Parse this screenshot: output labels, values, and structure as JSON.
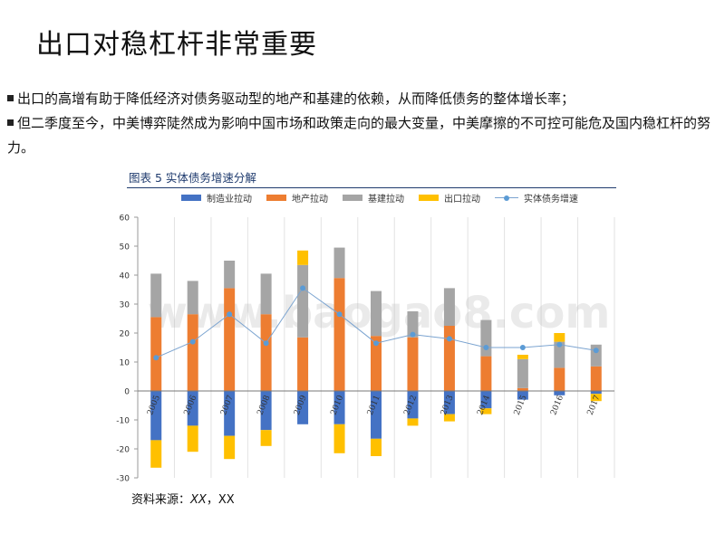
{
  "slide": {
    "title": "出口对稳杠杆非常重要",
    "bullets": [
      "出口的高增有助于降低经济对债务驱动型的地产和基建的依赖，从而降低债务的整体增长率；",
      "但二季度至今，中美博弈陡然成为影响中国市场和政策走向的最大变量，中美摩擦的不可控可能危及国内稳杠杆的努力。"
    ],
    "chart_caption": "图表 5  实体债务增速分解",
    "source_label": "资料来源：",
    "source_value_1": "XX",
    "source_sep": "，",
    "source_value_2": "XX"
  },
  "colors": {
    "manufacturing": "#4472c4",
    "realestate": "#ed7d31",
    "infrastructure": "#a5a5a5",
    "exports": "#ffc000",
    "growth_line": "#7aa3d0",
    "growth_marker": "#5b9bd5"
  },
  "chart_data": {
    "type": "bar",
    "stacked": true,
    "categories": [
      "2005",
      "2006",
      "2007",
      "2008",
      "2009",
      "2010",
      "2011",
      "2012",
      "2013",
      "2014",
      "2015",
      "2016",
      "2017"
    ],
    "series": [
      {
        "name": "制造业拉动",
        "values": [
          -17,
          -12,
          -15.5,
          -13.5,
          -11.5,
          -11.5,
          -16.5,
          -9.5,
          -8,
          -6,
          -3,
          -1.5,
          -1
        ]
      },
      {
        "name": "地产拉动",
        "values": [
          25.5,
          26.5,
          35.5,
          26.5,
          18.5,
          39,
          19,
          18.5,
          22.5,
          12,
          1,
          8,
          8.5
        ]
      },
      {
        "name": "基建拉动",
        "values": [
          15,
          11.5,
          9.5,
          14,
          25,
          10.5,
          15.5,
          9,
          13,
          12.5,
          10,
          9,
          7.5
        ]
      },
      {
        "name": "出口拉动",
        "values": [
          -9.5,
          -9,
          -8,
          -5.5,
          5,
          -10,
          -6,
          -2.5,
          -2.5,
          -2,
          1.5,
          3,
          -2.5
        ]
      }
    ],
    "line": {
      "name": "实体债务增速",
      "values": [
        11.5,
        17,
        26.5,
        16.5,
        35.5,
        26.5,
        16.5,
        19.5,
        18,
        15,
        15,
        16,
        14
      ]
    },
    "ylim": [
      -30,
      60
    ],
    "yticks": [
      -30,
      -20,
      -10,
      0,
      10,
      20,
      30,
      40,
      50,
      60
    ],
    "legend_position": "top",
    "grid": "vertical",
    "watermark": "www.baogao8.com"
  }
}
